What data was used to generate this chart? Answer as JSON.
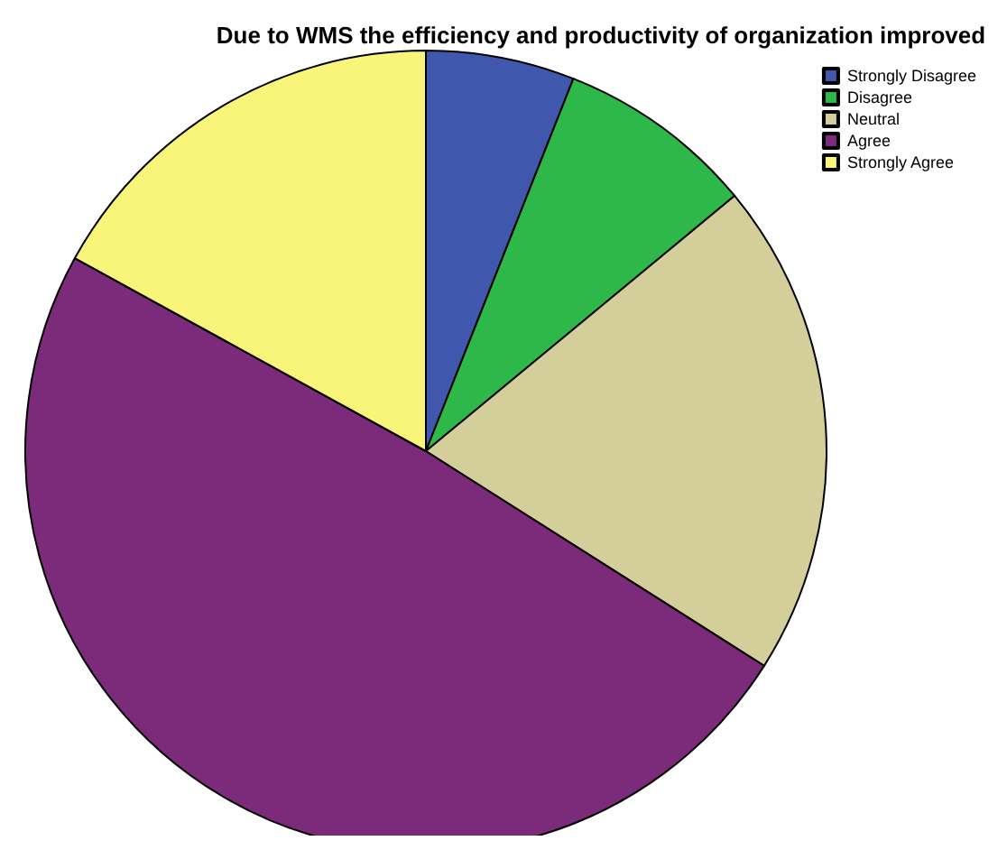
{
  "chart_data": {
    "type": "pie",
    "title": "Due to WMS the efficiency and productivity of organization improved",
    "categories": [
      "Strongly Disagree",
      "Disagree",
      "Neutral",
      "Agree",
      "Strongly Agree"
    ],
    "values": [
      6,
      8,
      20,
      49,
      17
    ],
    "colors": [
      "#3f57ad",
      "#2fb84a",
      "#d4cf9a",
      "#7c2a7a",
      "#f9f47a"
    ],
    "legend": "top right"
  }
}
